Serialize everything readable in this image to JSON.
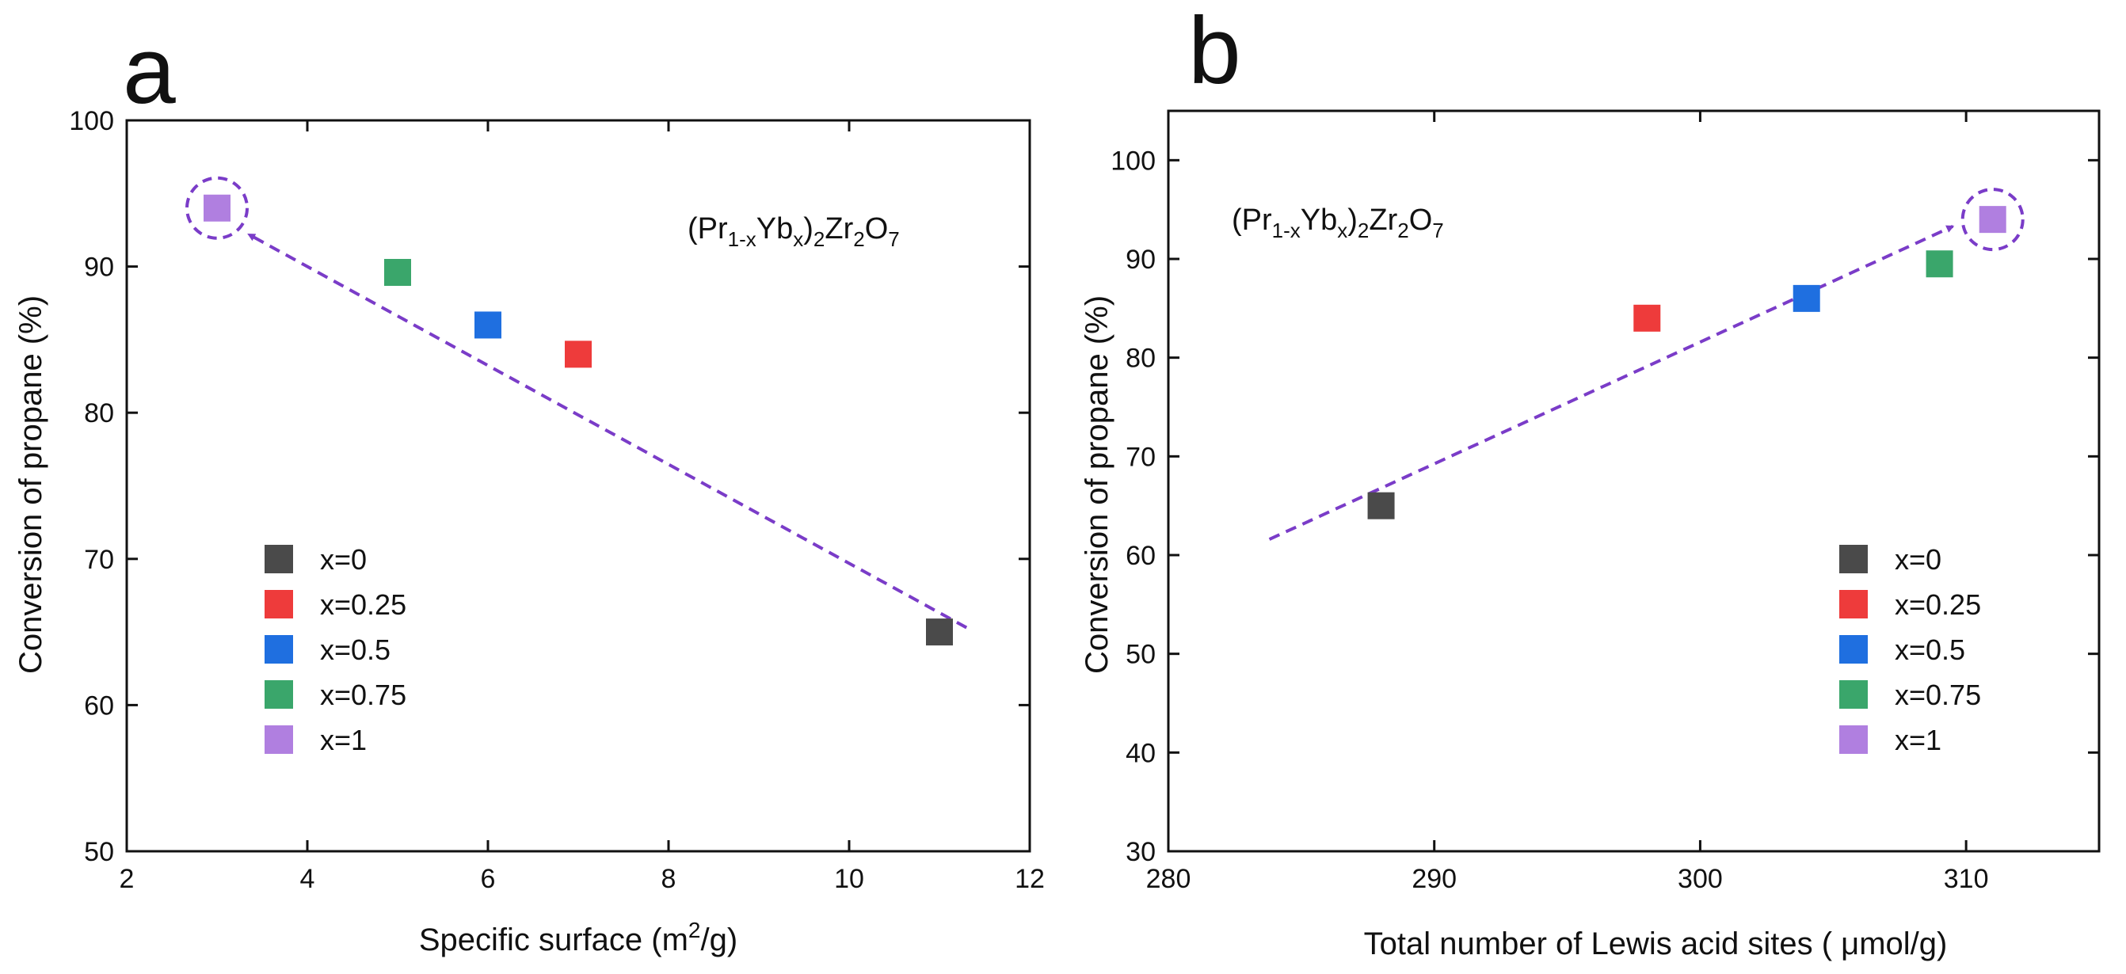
{
  "chart_data": [
    {
      "type": "scatter",
      "panel": "a",
      "formula": {
        "open": "(Pr",
        "sub1": "1-x",
        "mid1": "Yb",
        "sub2": "x",
        "mid2": ")",
        "sub3": "2",
        "mid3": "Zr",
        "sub4": "2",
        "mid4": "O",
        "sub5": "7"
      },
      "xlabel": {
        "text": "Specific surface (m",
        "sup": "2",
        "end": "/g)"
      },
      "ylabel": "Conversion of propane (%)",
      "xlim": [
        2,
        12
      ],
      "ylim": [
        50,
        100
      ],
      "xticks": [
        2,
        4,
        6,
        8,
        10,
        12
      ],
      "yticks": [
        50,
        60,
        70,
        80,
        90,
        100
      ],
      "legend_position": "bottom-left",
      "points": [
        {
          "label": "x=0",
          "x": 11,
          "y": 65,
          "color": "#4a4a4a"
        },
        {
          "label": "x=0.25",
          "x": 7,
          "y": 84,
          "color": "#ee3b3b"
        },
        {
          "label": "x=0.5",
          "x": 6,
          "y": 86,
          "color": "#1f6fe0"
        },
        {
          "label": "x=0.75",
          "x": 5,
          "y": 89.6,
          "color": "#3aa66b"
        },
        {
          "label": "x=1",
          "x": 3,
          "y": 94,
          "color": "#b07fe0"
        }
      ],
      "trend_arrow": {
        "from": [
          11.3,
          65.3
        ],
        "to": [
          3.35,
          92.2
        ],
        "color": "#7a3cc8"
      },
      "highlight_circle": {
        "x": 3,
        "y": 94
      }
    },
    {
      "type": "scatter",
      "panel": "b",
      "formula": {
        "open": "(Pr",
        "sub1": "1-x",
        "mid1": "Yb",
        "sub2": "x",
        "mid2": ")",
        "sub3": "2",
        "mid3": "Zr",
        "sub4": "2",
        "mid4": "O",
        "sub5": "7"
      },
      "xlabel": {
        "text": "Total number of Lewis acid sites ( ",
        "mu": "μ",
        "end": "mol/g)"
      },
      "ylabel": "Conversion of propane (%)",
      "xlim": [
        280,
        315
      ],
      "ylim": [
        30,
        105
      ],
      "xticks": [
        280,
        290,
        300,
        310
      ],
      "yticks": [
        30,
        40,
        50,
        60,
        70,
        80,
        90,
        100
      ],
      "legend_position": "bottom-right",
      "points": [
        {
          "label": "x=0",
          "x": 288,
          "y": 65,
          "color": "#4a4a4a"
        },
        {
          "label": "x=0.25",
          "x": 298,
          "y": 84,
          "color": "#ee3b3b"
        },
        {
          "label": "x=0.5",
          "x": 304,
          "y": 86,
          "color": "#1f6fe0"
        },
        {
          "label": "x=0.75",
          "x": 309,
          "y": 89.5,
          "color": "#3aa66b"
        },
        {
          "label": "x=1",
          "x": 311,
          "y": 94,
          "color": "#b07fe0"
        }
      ],
      "trend_arrow": {
        "from": [
          283.8,
          61.6
        ],
        "to": [
          309.5,
          93.3
        ],
        "color": "#7a3cc8"
      },
      "highlight_circle": {
        "x": 311,
        "y": 94
      }
    }
  ]
}
